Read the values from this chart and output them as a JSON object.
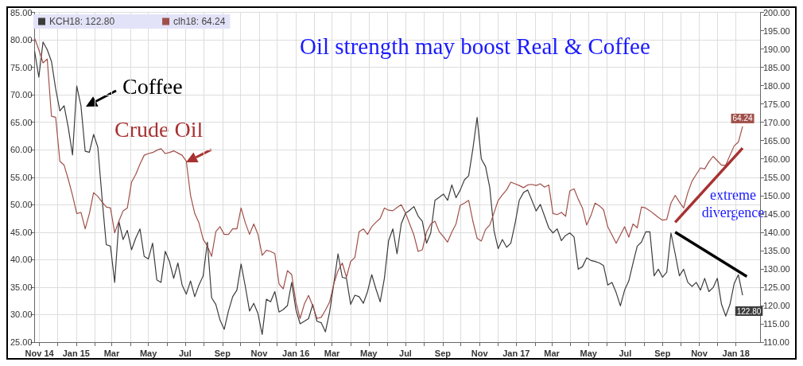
{
  "chart_data": {
    "type": "line",
    "title": "Oil strength may boost Real & Coffee",
    "annotations": [
      "Coffee",
      "Crude Oil",
      "extreme divergence"
    ],
    "x": [
      "2014-10-24",
      "2014-10-31",
      "2014-11-07",
      "2014-11-14",
      "2014-11-21",
      "2014-11-28",
      "2014-12-05",
      "2014-12-12",
      "2014-12-19",
      "2014-12-26",
      "2015-01-02",
      "2015-01-09",
      "2015-01-16",
      "2015-01-23",
      "2015-01-30",
      "2015-02-06",
      "2015-02-13",
      "2015-02-20",
      "2015-02-27",
      "2015-03-06",
      "2015-03-13",
      "2015-03-20",
      "2015-03-27",
      "2015-04-03",
      "2015-04-10",
      "2015-04-17",
      "2015-04-24",
      "2015-05-01",
      "2015-05-08",
      "2015-05-15",
      "2015-05-22",
      "2015-05-29",
      "2015-06-05",
      "2015-06-12",
      "2015-06-19",
      "2015-06-26",
      "2015-07-03",
      "2015-07-10",
      "2015-07-17",
      "2015-07-24",
      "2015-07-31",
      "2015-08-07",
      "2015-08-14",
      "2015-08-21",
      "2015-08-28",
      "2015-09-04",
      "2015-09-11",
      "2015-09-18",
      "2015-09-25",
      "2015-10-02",
      "2015-10-09",
      "2015-10-16",
      "2015-10-23",
      "2015-10-30",
      "2015-11-06",
      "2015-11-13",
      "2015-11-20",
      "2015-11-27",
      "2015-12-04",
      "2015-12-11",
      "2015-12-18",
      "2015-12-25",
      "2016-01-01",
      "2016-01-08",
      "2016-01-15",
      "2016-01-22",
      "2016-01-29",
      "2016-02-05",
      "2016-02-12",
      "2016-02-19",
      "2016-02-26",
      "2016-03-04",
      "2016-03-11",
      "2016-03-18",
      "2016-03-25",
      "2016-04-01",
      "2016-04-08",
      "2016-04-15",
      "2016-04-22",
      "2016-04-29",
      "2016-05-06",
      "2016-05-13",
      "2016-05-20",
      "2016-05-27",
      "2016-06-03",
      "2016-06-10",
      "2016-06-17",
      "2016-06-24",
      "2016-07-01",
      "2016-07-08",
      "2016-07-15",
      "2016-07-22",
      "2016-07-29",
      "2016-08-05",
      "2016-08-12",
      "2016-08-19",
      "2016-08-26",
      "2016-09-02",
      "2016-09-09",
      "2016-09-16",
      "2016-09-23",
      "2016-09-30",
      "2016-10-07",
      "2016-10-14",
      "2016-10-21",
      "2016-10-28",
      "2016-11-04",
      "2016-11-11",
      "2016-11-18",
      "2016-11-25",
      "2016-12-02",
      "2016-12-09",
      "2016-12-16",
      "2016-12-23",
      "2016-12-30",
      "2017-01-06",
      "2017-01-13",
      "2017-01-20",
      "2017-01-27",
      "2017-02-03",
      "2017-02-10",
      "2017-02-17",
      "2017-02-24",
      "2017-03-03",
      "2017-03-10",
      "2017-03-17",
      "2017-03-24",
      "2017-03-31",
      "2017-04-07",
      "2017-04-14",
      "2017-04-21",
      "2017-04-28",
      "2017-05-05",
      "2017-05-12",
      "2017-05-19",
      "2017-05-26",
      "2017-06-02",
      "2017-06-09",
      "2017-06-16",
      "2017-06-23",
      "2017-06-30",
      "2017-07-07",
      "2017-07-14",
      "2017-07-21",
      "2017-07-28",
      "2017-08-04",
      "2017-08-11",
      "2017-08-18",
      "2017-08-25",
      "2017-09-01",
      "2017-09-08",
      "2017-09-15",
      "2017-09-22",
      "2017-09-29",
      "2017-10-06",
      "2017-10-13",
      "2017-10-20",
      "2017-10-27",
      "2017-11-03",
      "2017-11-10",
      "2017-11-17",
      "2017-11-24",
      "2017-12-01",
      "2017-12-08",
      "2017-12-15",
      "2017-12-22",
      "2017-12-29",
      "2018-01-05",
      "2018-01-12"
    ],
    "series": [
      {
        "name": "KCH18: 122.80",
        "color": "#3c3c3c",
        "axis": "y2",
        "values": [
          189.4,
          182.3,
          191.9,
          189.8,
          186.6,
          179.1,
          173.1,
          174.5,
          168.5,
          161.1,
          179.9,
          174.5,
          162.1,
          161.8,
          166.7,
          163.2,
          149.4,
          136.6,
          136.2,
          126.3,
          143.0,
          138.0,
          140.5,
          135.2,
          138.4,
          140.9,
          133.4,
          132.7,
          137.0,
          127.0,
          126.3,
          134.8,
          132.0,
          127.4,
          131.6,
          125.6,
          123.1,
          126.7,
          122.4,
          125.6,
          128.1,
          137.3,
          122.1,
          120.3,
          116.0,
          113.5,
          118.5,
          122.4,
          124.2,
          131.3,
          125.2,
          118.5,
          120.6,
          117.8,
          112.1,
          121.7,
          121.0,
          123.8,
          118.2,
          118.9,
          120.0,
          126.3,
          118.9,
          115.0,
          115.7,
          116.4,
          120.3,
          115.7,
          115.3,
          112.8,
          118.2,
          126.0,
          134.1,
          127.7,
          127.4,
          120.3,
          122.8,
          122.4,
          120.6,
          123.8,
          128.4,
          124.5,
          121.0,
          127.4,
          137.7,
          140.9,
          134.1,
          142.3,
          145.1,
          146.0,
          147.0,
          144.4,
          143.0,
          137.0,
          139.8,
          148.7,
          149.5,
          150.4,
          148.7,
          152.9,
          149.4,
          151.5,
          154.3,
          155.4,
          162.8,
          171.3,
          160.0,
          157.9,
          152.2,
          140.5,
          135.5,
          138.0,
          135.9,
          137.0,
          142.3,
          148.7,
          150.8,
          151.5,
          148.7,
          145.8,
          147.6,
          144.4,
          141.2,
          139.8,
          140.9,
          137.7,
          139.1,
          139.8,
          138.7,
          129.9,
          130.6,
          133.0,
          132.3,
          132.0,
          131.6,
          130.9,
          125.6,
          126.3,
          123.5,
          119.9,
          124.2,
          126.7,
          131.6,
          136.2,
          137.3,
          140.1,
          140.1,
          128.1,
          129.9,
          127.7,
          129.1,
          139.8,
          134.1,
          128.1,
          129.9,
          126.3,
          125.2,
          126.3,
          124.2,
          127.4,
          123.8,
          124.9,
          127.4,
          120.3,
          117.1,
          120.3,
          126.0,
          128.4,
          122.8
        ],
        "value_labels": [
          null,
          null,
          null,
          null,
          null,
          null,
          null,
          null,
          null,
          null,
          null,
          null,
          null,
          null,
          null,
          null,
          null,
          null,
          null,
          null,
          null,
          null,
          null,
          null,
          null,
          null,
          null,
          null,
          null,
          null,
          null,
          null,
          null,
          null,
          null,
          null,
          null,
          null,
          null,
          null,
          null,
          null,
          null,
          null,
          null,
          null,
          null,
          null,
          null,
          null,
          null,
          null,
          null,
          null,
          null,
          null,
          null,
          null,
          null,
          null,
          null,
          null,
          null,
          null,
          null,
          null,
          null,
          null,
          null,
          null,
          null,
          null,
          null,
          null,
          null,
          null,
          null,
          null,
          null,
          null,
          null,
          null,
          null,
          null,
          null,
          null,
          null,
          null,
          null,
          null,
          null,
          null,
          null,
          null,
          null,
          null,
          null,
          null,
          null,
          null,
          null,
          null,
          null,
          null,
          null,
          null,
          null,
          null,
          null,
          null,
          null,
          null,
          null,
          null,
          null,
          null,
          null,
          null,
          null,
          null,
          null,
          null,
          null,
          null,
          null,
          null,
          null,
          null,
          null,
          null,
          null,
          null,
          null,
          null,
          null,
          null,
          null,
          null,
          null,
          null,
          null,
          null,
          null,
          null,
          null,
          null,
          null,
          null,
          null,
          null,
          null,
          null,
          null,
          null,
          null,
          null,
          null,
          null,
          null,
          null,
          null,
          null,
          null,
          null,
          null,
          null,
          null,
          null,
          "122.80"
        ]
      },
      {
        "name": "clh18: 64.24",
        "color": "#a0504a",
        "values": [
          80.3,
          78.2,
          75.8,
          76.5,
          66.1,
          65.9,
          57.9,
          57.2,
          54.6,
          51.7,
          48.4,
          48.6,
          45.6,
          48.4,
          52.2,
          51.5,
          50.5,
          49.6,
          49.4,
          44.9,
          47.0,
          48.9,
          49.4,
          54.1,
          55.5,
          57.4,
          59.0,
          59.3,
          59.5,
          59.9,
          60.2,
          59.3,
          59.5,
          59.8,
          59.4,
          59.0,
          57.9,
          51.7,
          48.4,
          46.7,
          43.7,
          42.5,
          40.6,
          45.1,
          46.0,
          44.6,
          44.6,
          45.6,
          45.6,
          49.4,
          46.7,
          44.6,
          46.5,
          44.6,
          40.8,
          41.7,
          41.5,
          41.1,
          35.6,
          34.7,
          38.0,
          37.3,
          32.3,
          29.3,
          31.9,
          33.5,
          31.6,
          29.3,
          29.5,
          30.8,
          32.3,
          35.6,
          38.0,
          39.4,
          36.8,
          39.7,
          40.4,
          45.1,
          45.6,
          44.6,
          46.0,
          46.8,
          47.5,
          49.4,
          49.0,
          48.9,
          49.5,
          50.0,
          48.5,
          46.5,
          44.5,
          41.5,
          41.8,
          45.0,
          46.5,
          47.0,
          45.1,
          44.2,
          43.2,
          45.0,
          46.5,
          49.9,
          50.3,
          50.8,
          47.0,
          43.9,
          43.4,
          45.5,
          46.3,
          48.5,
          50.8,
          51.8,
          52.7,
          54.1,
          53.8,
          53.5,
          53.1,
          53.6,
          53.7,
          53.5,
          53.8,
          53.2,
          53.6,
          48.4,
          48.2,
          48.6,
          47.9,
          52.5,
          52.9,
          51.0,
          49.4,
          46.3,
          48.0,
          50.3,
          49.8,
          49.1,
          46.0,
          44.5,
          43.0,
          44.5,
          46.0,
          44.1,
          46.5,
          45.8,
          49.6,
          49.4,
          48.9,
          48.3,
          47.7,
          47.2,
          47.3,
          50.3,
          51.7,
          50.5,
          49.4,
          52.2,
          54.3,
          55.5,
          56.7,
          56.5,
          57.8,
          58.8,
          58.0,
          57.2,
          57.2,
          59.0,
          60.7,
          61.4,
          64.24
        ],
        "value_labels": [
          null,
          null,
          null,
          null,
          null,
          null,
          null,
          null,
          null,
          null,
          null,
          null,
          null,
          null,
          null,
          null,
          null,
          null,
          null,
          null,
          null,
          null,
          null,
          null,
          null,
          null,
          null,
          null,
          null,
          null,
          null,
          null,
          null,
          null,
          null,
          null,
          null,
          null,
          null,
          null,
          null,
          null,
          null,
          null,
          null,
          null,
          null,
          null,
          null,
          null,
          null,
          null,
          null,
          null,
          null,
          null,
          null,
          null,
          null,
          null,
          null,
          null,
          null,
          null,
          null,
          null,
          null,
          null,
          null,
          null,
          null,
          null,
          null,
          null,
          null,
          null,
          null,
          null,
          null,
          null,
          null,
          null,
          null,
          null,
          null,
          null,
          null,
          null,
          null,
          null,
          null,
          null,
          null,
          null,
          null,
          null,
          null,
          null,
          null,
          null,
          null,
          null,
          null,
          null,
          null,
          null,
          null,
          null,
          null,
          null,
          null,
          null,
          null,
          null,
          null,
          null,
          null,
          null,
          null,
          null,
          null,
          null,
          null,
          null,
          null,
          null,
          null,
          null,
          null,
          null,
          null,
          null,
          null,
          null,
          null,
          null,
          null,
          null,
          null,
          null,
          null,
          null,
          null,
          null,
          null,
          null,
          null,
          null,
          null,
          null,
          null,
          null,
          null,
          null,
          null,
          null,
          null,
          null,
          null,
          null,
          null,
          null,
          null,
          null,
          null,
          null,
          null,
          null,
          "64.24"
        ]
      },
      {
        "type": "line",
        "color": "#a83232",
        "x": [
          "2017-09-22",
          "2018-01-12"
        ],
        "values": [
          46.8,
          60.3
        ]
      },
      {
        "type": "line",
        "color": "#000000",
        "axis": "y2",
        "x": [
          "2017-09-22",
          "2018-01-19"
        ],
        "values": [
          140.0,
          127.9
        ]
      }
    ],
    "xlim": [
      "2014-10-24",
      "2018-02-10"
    ],
    "xticks": [
      {
        "value": "2014-11-01",
        "label": "Nov 14"
      },
      {
        "value": "2014-12-01",
        "label": null
      },
      {
        "value": "2015-01-01",
        "label": "Jan 15"
      },
      {
        "value": "2015-02-01",
        "label": null
      },
      {
        "value": "2015-03-01",
        "label": "Mar"
      },
      {
        "value": "2015-04-01",
        "label": null
      },
      {
        "value": "2015-05-01",
        "label": "May"
      },
      {
        "value": "2015-06-01",
        "label": null
      },
      {
        "value": "2015-07-01",
        "label": "Jul"
      },
      {
        "value": "2015-08-01",
        "label": null
      },
      {
        "value": "2015-09-01",
        "label": "Sep"
      },
      {
        "value": "2015-10-01",
        "label": null
      },
      {
        "value": "2015-11-01",
        "label": "Nov"
      },
      {
        "value": "2015-12-01",
        "label": null
      },
      {
        "value": "2016-01-01",
        "label": "Jan 16"
      },
      {
        "value": "2016-02-01",
        "label": null
      },
      {
        "value": "2016-03-01",
        "label": "Mar"
      },
      {
        "value": "2016-04-01",
        "label": null
      },
      {
        "value": "2016-05-01",
        "label": "May"
      },
      {
        "value": "2016-06-01",
        "label": null
      },
      {
        "value": "2016-07-01",
        "label": "Jul"
      },
      {
        "value": "2016-08-01",
        "label": null
      },
      {
        "value": "2016-09-01",
        "label": "Sep"
      },
      {
        "value": "2016-10-01",
        "label": null
      },
      {
        "value": "2016-11-01",
        "label": "Nov"
      },
      {
        "value": "2016-12-01",
        "label": null
      },
      {
        "value": "2017-01-01",
        "label": "Jan 17"
      },
      {
        "value": "2017-02-01",
        "label": null
      },
      {
        "value": "2017-03-01",
        "label": "Mar"
      },
      {
        "value": "2017-04-01",
        "label": null
      },
      {
        "value": "2017-05-01",
        "label": "May"
      },
      {
        "value": "2017-06-01",
        "label": null
      },
      {
        "value": "2017-07-01",
        "label": "Jul"
      },
      {
        "value": "2017-08-01",
        "label": null
      },
      {
        "value": "2017-09-01",
        "label": "Sep"
      },
      {
        "value": "2017-10-01",
        "label": null
      },
      {
        "value": "2017-11-01",
        "label": "Nov"
      },
      {
        "value": "2017-12-01",
        "label": null
      },
      {
        "value": "2018-01-01",
        "label": "Jan 18"
      }
    ],
    "ylim": [
      25,
      85
    ],
    "yticks": [
      {
        "value": 25,
        "label": "25.00"
      },
      {
        "value": 30,
        "label": "30.00"
      },
      {
        "value": 35,
        "label": "35.00"
      },
      {
        "value": 40,
        "label": "40.00"
      },
      {
        "value": 45,
        "label": "45.00"
      },
      {
        "value": 50,
        "label": "50.00"
      },
      {
        "value": 55,
        "label": "55.00"
      },
      {
        "value": 60,
        "label": "60.00"
      },
      {
        "value": 65,
        "label": "65.00"
      },
      {
        "value": 70,
        "label": "70.00"
      },
      {
        "value": 75,
        "label": "75.00"
      },
      {
        "value": 80,
        "label": "80.00"
      },
      {
        "value": 85,
        "label": "85.00"
      }
    ],
    "y2lim": [
      110,
      200
    ],
    "y2ticks": [
      {
        "value": 110,
        "label": "110.00"
      },
      {
        "value": 115,
        "label": "115.00"
      },
      {
        "value": 120,
        "label": "120.00"
      },
      {
        "value": 125,
        "label": "125.00"
      },
      {
        "value": 130,
        "label": "130.00"
      },
      {
        "value": 135,
        "label": "135.00"
      },
      {
        "value": 140,
        "label": "140.00"
      },
      {
        "value": 145,
        "label": "145.00"
      },
      {
        "value": 150,
        "label": "150.00"
      },
      {
        "value": 155,
        "label": "155.00"
      },
      {
        "value": 160,
        "label": "160.00"
      },
      {
        "value": 165,
        "label": "165.00"
      },
      {
        "value": 170,
        "label": "170.00"
      },
      {
        "value": 175,
        "label": "175.00"
      },
      {
        "value": 180,
        "label": "180.00"
      },
      {
        "value": 185,
        "label": "185.00"
      },
      {
        "value": 190,
        "label": "190.00"
      },
      {
        "value": 195,
        "label": "195.00"
      },
      {
        "value": 200,
        "label": "200.00"
      }
    ],
    "grid": true,
    "legend": "top left",
    "marker": "none"
  }
}
